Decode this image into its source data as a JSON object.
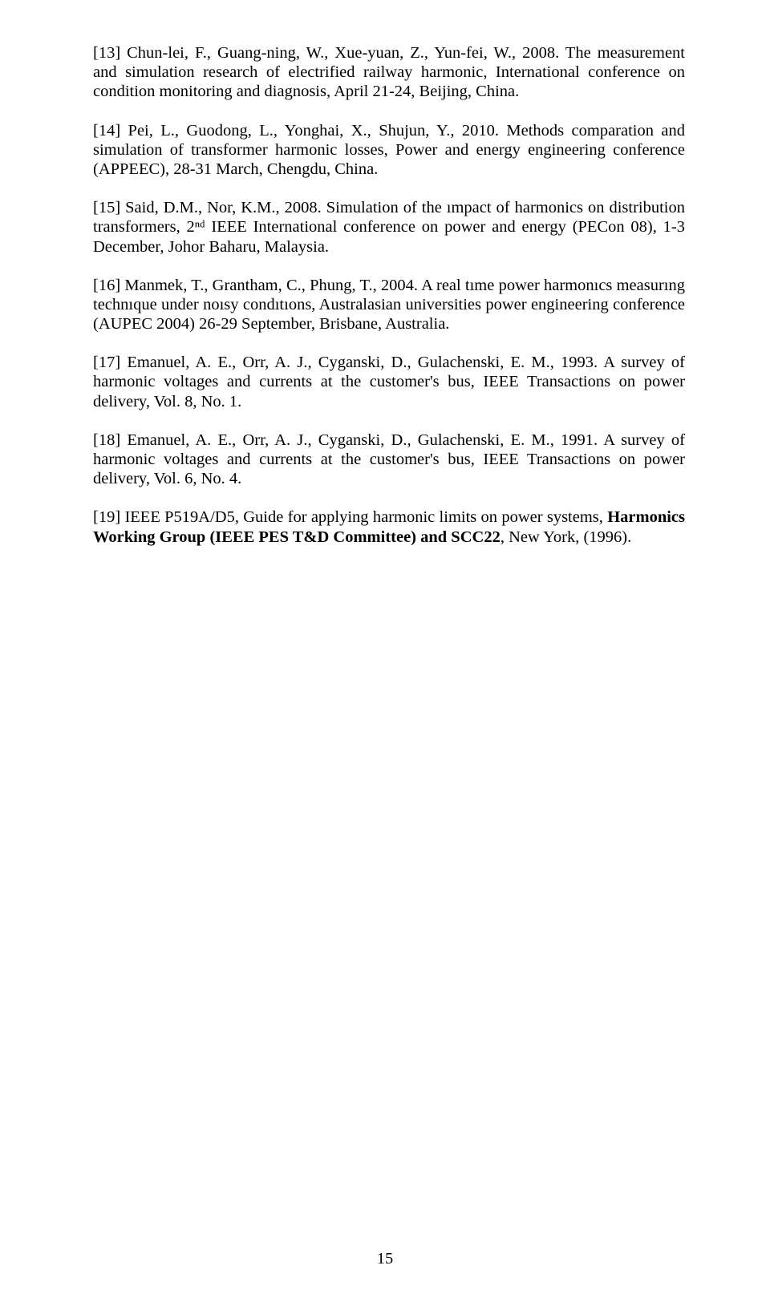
{
  "references": [
    {
      "text": "[13] Chun-lei, F., Guang-ning, W., Xue-yuan, Z., Yun-fei, W., 2008. The measurement and simulation research of electrified railway harmonic, International conference on condition monitoring and diagnosis, April 21-24, Beijing, China."
    },
    {
      "text": "[14] Pei, L., Guodong, L., Yonghai, X., Shujun, Y., 2010. Methods comparation and simulation of transformer harmonic losses, Power and energy engineering conference (APPEEC), 28-31 March, Chengdu, China."
    },
    {
      "text": "[15] Said, D.M., Nor, K.M., 2008. Simulation of the ımpact of harmonics on distribution transformers, 2ⁿᵈ IEEE International conference on power and energy (PECon 08), 1-3 December, Johor Baharu, Malaysia."
    },
    {
      "text": "[16] Manmek, T., Grantham, C., Phung, T., 2004. A real tıme power harmonıcs measurıng technıque under noısy condıtıons, Australasian universities power engineering conference (AUPEC 2004) 26-29 September, Brisbane, Australia."
    },
    {
      "text": "[17] Emanuel, A. E., Orr, A. J., Cyganski, D., Gulachenski, E. M., 1993. A survey of harmonic voltages and currents at the customer's bus, IEEE Transactions on power delivery, Vol. 8, No. 1."
    },
    {
      "text": "[18] Emanuel, A. E., Orr, A. J., Cyganski, D., Gulachenski, E. M., 1991. A survey of harmonic voltages and currents at the customer's bus, IEEE Transactions on power delivery, Vol. 6, No. 4."
    },
    {
      "text_parts": [
        {
          "t": "[19] IEEE P519A/D5, Guide for applying harmonic limits on power systems, ",
          "bold": false
        },
        {
          "t": "Harmonics Working Group (IEEE PES T&D Committee) and SCC22",
          "bold": true
        },
        {
          "t": ", New York, (1996).",
          "bold": false
        }
      ]
    }
  ],
  "page_number": "15",
  "style": {
    "font_family": "Times New Roman",
    "font_size_pt": 12,
    "text_color": "#000000",
    "background_color": "#ffffff"
  }
}
